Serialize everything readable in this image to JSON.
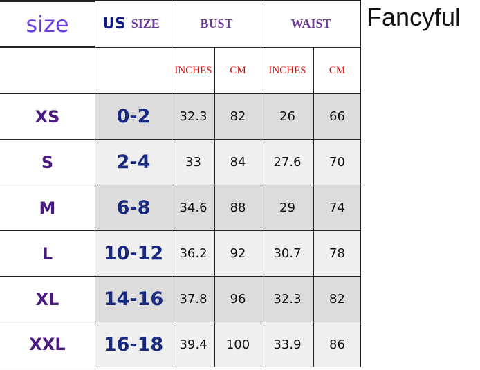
{
  "brand": "Fancyful",
  "header": {
    "size": "size",
    "us_prefix": "US",
    "us_size": "SIZE",
    "bust": "BUST",
    "waist": "WAIST",
    "inches": "INCHES",
    "cm": "CM"
  },
  "rows": [
    {
      "size": "XS",
      "us": "0-2",
      "bust_in": "32.3",
      "bust_cm": "82",
      "waist_in": "26",
      "waist_cm": "66"
    },
    {
      "size": "S",
      "us": "2-4",
      "bust_in": "33",
      "bust_cm": "84",
      "waist_in": "27.6",
      "waist_cm": "70"
    },
    {
      "size": "M",
      "us": "6-8",
      "bust_in": "34.6",
      "bust_cm": "88",
      "waist_in": "29",
      "waist_cm": "74"
    },
    {
      "size": "L",
      "us": "10-12",
      "bust_in": "36.2",
      "bust_cm": "92",
      "waist_in": "30.7",
      "waist_cm": "78"
    },
    {
      "size": "XL",
      "us": "14-16",
      "bust_in": "37.8",
      "bust_cm": "96",
      "waist_in": "32.3",
      "waist_cm": "82"
    },
    {
      "size": "XXL",
      "us": "16-18",
      "bust_in": "39.4",
      "bust_cm": "100",
      "waist_in": "33.9",
      "waist_cm": "86"
    }
  ]
}
